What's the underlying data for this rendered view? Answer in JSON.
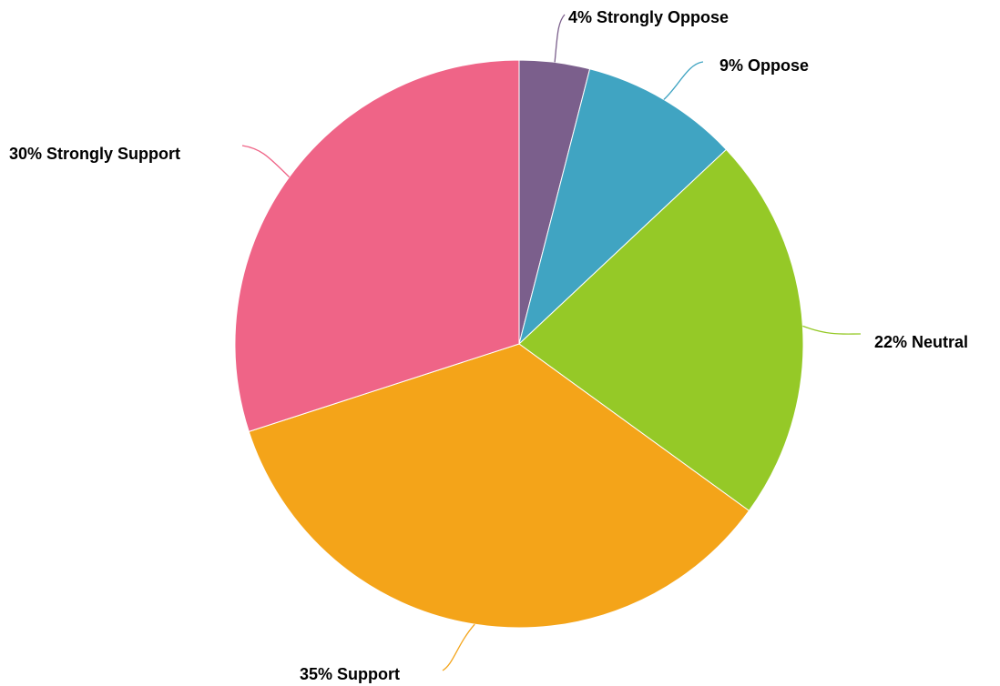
{
  "chart_data": {
    "type": "pie",
    "title": "",
    "slices": [
      {
        "name": "Strongly Oppose",
        "value": 4,
        "label": "4% Strongly Oppose",
        "color": "#7B5F8C"
      },
      {
        "name": "Oppose",
        "value": 9,
        "label": "9% Oppose",
        "color": "#40A4C2"
      },
      {
        "name": "Neutral",
        "value": 22,
        "label": "22% Neutral",
        "color": "#95C927"
      },
      {
        "name": "Support",
        "value": 35,
        "label": "35% Support",
        "color": "#F4A419"
      },
      {
        "name": "Strongly Support",
        "value": 30,
        "label": "30% Strongly Support",
        "color": "#EF6487"
      }
    ],
    "start_angle": "12 o'clock",
    "direction": "clockwise",
    "legend": "none",
    "label_style": "outside with leader lines"
  }
}
